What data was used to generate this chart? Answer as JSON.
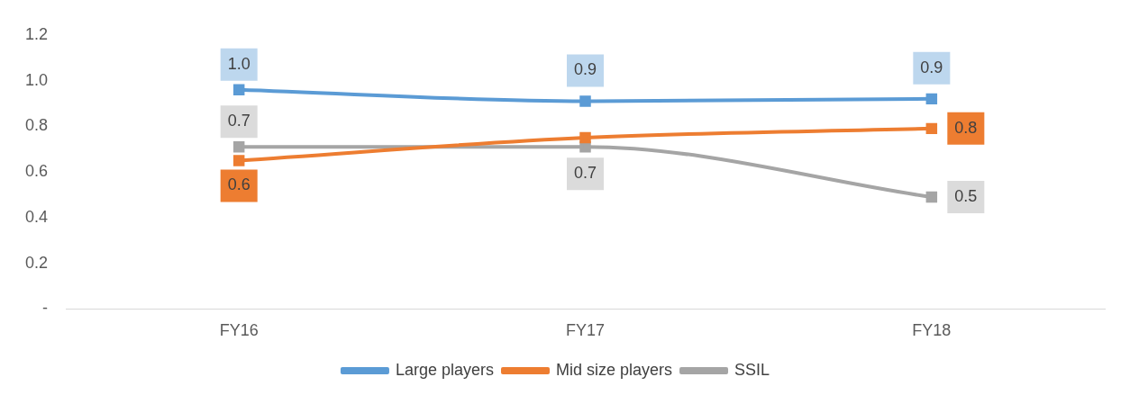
{
  "chart_data": {
    "type": "line",
    "categories": [
      "FY16",
      "FY17",
      "FY18"
    ],
    "series": [
      {
        "name": "Large players",
        "color": "#5b9bd5",
        "values": [
          0.96,
          0.91,
          0.92
        ],
        "value_labels": [
          "1.0",
          "0.9",
          "0.9"
        ]
      },
      {
        "name": "Mid size players",
        "color": "#ed7d31",
        "values": [
          0.65,
          0.75,
          0.79
        ],
        "value_labels": [
          "0.6",
          null,
          "0.8"
        ]
      },
      {
        "name": "SSIL",
        "color": "#a5a5a5",
        "values": [
          0.71,
          0.71,
          0.49
        ],
        "value_labels": [
          "0.7",
          "0.7",
          "0.5"
        ]
      }
    ],
    "ylim": [
      0,
      1.2
    ],
    "yticks": [
      {
        "value": 0,
        "label": "-"
      },
      0.2,
      0.4,
      0.6,
      0.8,
      {
        "value": 1,
        "label": "1.0"
      },
      1.2
    ],
    "grid": false,
    "legend": "bottom",
    "marker": "square",
    "line_style": "solid"
  }
}
